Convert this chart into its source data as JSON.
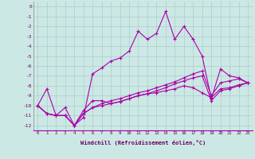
{
  "x": [
    0,
    1,
    2,
    3,
    4,
    5,
    6,
    7,
    8,
    9,
    10,
    11,
    12,
    13,
    14,
    15,
    16,
    17,
    18,
    19,
    20,
    21,
    22,
    23
  ],
  "line1": [
    -10,
    -8.3,
    -11.0,
    -10.2,
    -12.0,
    -11.2,
    -6.8,
    -6.2,
    -5.5,
    -5.2,
    -4.5,
    -2.5,
    -3.3,
    -2.7,
    -0.5,
    -3.3,
    -2.0,
    -3.3,
    -5.0,
    -9.3,
    -6.3,
    -7.0,
    -7.2,
    -7.7
  ],
  "line2": [
    -10,
    -10.8,
    -11.0,
    -11.0,
    -12.0,
    -10.5,
    -9.5,
    -9.5,
    -9.8,
    -9.6,
    -9.3,
    -9.0,
    -8.8,
    -8.7,
    -8.5,
    -8.3,
    -8.0,
    -8.2,
    -8.7,
    -9.2,
    -8.3,
    -8.2,
    -7.9,
    -7.7
  ],
  "line3": [
    -10,
    -10.8,
    -11.0,
    -11.0,
    -12.0,
    -10.8,
    -10.2,
    -10.0,
    -9.8,
    -9.6,
    -9.3,
    -9.0,
    -8.8,
    -8.5,
    -8.2,
    -7.8,
    -7.5,
    -7.2,
    -7.0,
    -9.5,
    -8.5,
    -8.3,
    -8.0,
    -7.7
  ],
  "line4": [
    -10,
    -10.8,
    -11.0,
    -11.0,
    -12.0,
    -10.8,
    -10.2,
    -9.8,
    -9.5,
    -9.3,
    -9.0,
    -8.7,
    -8.5,
    -8.2,
    -7.9,
    -7.6,
    -7.2,
    -6.8,
    -6.5,
    -9.0,
    -7.7,
    -7.5,
    -7.3,
    -7.7
  ],
  "xlabel": "Windchill (Refroidissement éolien,°C)",
  "ylabel_ticks": [
    "0",
    "-1",
    "-2",
    "-3",
    "-4",
    "-5",
    "-6",
    "-7",
    "-8",
    "-9",
    "-10",
    "-11",
    "-12"
  ],
  "yticks": [
    0,
    -1,
    -2,
    -3,
    -4,
    -5,
    -6,
    -7,
    -8,
    -9,
    -10,
    -11,
    -12
  ],
  "ylim": [
    -12.5,
    0.5
  ],
  "xlim": [
    -0.5,
    23.5
  ],
  "bg_color": "#cce8e4",
  "line_color": "#aa00aa",
  "grid_color": "#aacccc",
  "marker": "+",
  "markersize": 3,
  "linewidth": 0.8
}
